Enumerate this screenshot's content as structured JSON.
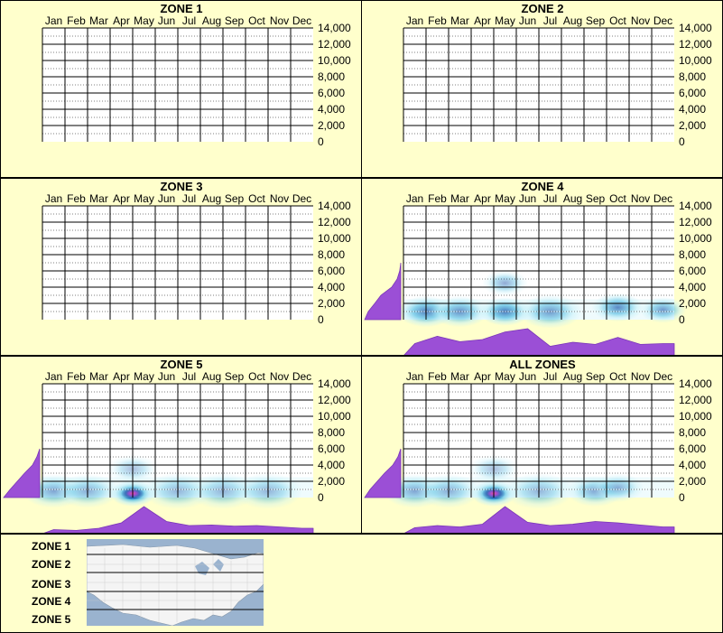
{
  "months": [
    "Jan",
    "Feb",
    "Mar",
    "Apr",
    "May",
    "Jun",
    "Jul",
    "Aug",
    "Sep",
    "Oct",
    "Nov",
    "Dec"
  ],
  "y_ticks": [
    "14,000",
    "12,000",
    "10,000",
    "8,000",
    "6,000",
    "4,000",
    "2,000",
    "0"
  ],
  "colors": {
    "panel_bg": "#ffffcc",
    "density_fill": "#9b4fd6",
    "density_stroke": "#7a36b8",
    "heat_light": "#bfeef8",
    "heat_mid": "#49b8e0",
    "heat_dark": "#0a3fa0",
    "heat_peak": "#ff1493"
  },
  "chart_data": [
    {
      "type": "heatmap",
      "title": "ZONE 1",
      "x": [
        "Jan",
        "Feb",
        "Mar",
        "Apr",
        "May",
        "Jun",
        "Jul",
        "Aug",
        "Sep",
        "Oct",
        "Nov",
        "Dec"
      ],
      "ylim": [
        0,
        14000
      ],
      "elevation_profile": [],
      "monthly_profile": [],
      "hotspots": []
    },
    {
      "type": "heatmap",
      "title": "ZONE 2",
      "x": [
        "Jan",
        "Feb",
        "Mar",
        "Apr",
        "May",
        "Jun",
        "Jul",
        "Aug",
        "Sep",
        "Oct",
        "Nov",
        "Dec"
      ],
      "ylim": [
        0,
        14000
      ],
      "elevation_profile": [],
      "monthly_profile": [],
      "hotspots": []
    },
    {
      "type": "heatmap",
      "title": "ZONE 3",
      "x": [
        "Jan",
        "Feb",
        "Mar",
        "Apr",
        "May",
        "Jun",
        "Jul",
        "Aug",
        "Sep",
        "Oct",
        "Nov",
        "Dec"
      ],
      "ylim": [
        0,
        14000
      ],
      "elevation_profile": [],
      "monthly_profile": [],
      "hotspots": []
    },
    {
      "type": "heatmap",
      "title": "ZONE 4",
      "x": [
        "Jan",
        "Feb",
        "Mar",
        "Apr",
        "May",
        "Jun",
        "Jul",
        "Aug",
        "Sep",
        "Oct",
        "Nov",
        "Dec"
      ],
      "ylim": [
        0,
        14000
      ],
      "elevation_profile": [
        {
          "elev": 0,
          "w": 1.0
        },
        {
          "elev": 1000,
          "w": 0.9
        },
        {
          "elev": 2000,
          "w": 0.72
        },
        {
          "elev": 3000,
          "w": 0.55
        },
        {
          "elev": 4000,
          "w": 0.25
        },
        {
          "elev": 5000,
          "w": 0.1
        },
        {
          "elev": 6000,
          "w": 0.03
        },
        {
          "elev": 7000,
          "w": 0.0
        }
      ],
      "monthly_profile": [
        0.45,
        0.72,
        0.52,
        0.6,
        0.88,
        1.0,
        0.35,
        0.5,
        0.42,
        0.68,
        0.42,
        0.45
      ],
      "hotspots": [
        {
          "month": 1.0,
          "elev": 1000,
          "intensity": 0.85,
          "spread": 0.8
        },
        {
          "month": 2.5,
          "elev": 1000,
          "intensity": 0.75,
          "spread": 0.8
        },
        {
          "month": 4.5,
          "elev": 1000,
          "intensity": 0.9,
          "spread": 0.7
        },
        {
          "month": 4.5,
          "elev": 4500,
          "intensity": 0.45,
          "spread": 0.6
        },
        {
          "month": 6.5,
          "elev": 1000,
          "intensity": 0.7,
          "spread": 0.9
        },
        {
          "month": 9.5,
          "elev": 1500,
          "intensity": 0.8,
          "spread": 0.7
        },
        {
          "month": 11.5,
          "elev": 1200,
          "intensity": 0.7,
          "spread": 0.6
        }
      ]
    },
    {
      "type": "heatmap",
      "title": "ZONE 5",
      "x": [
        "Jan",
        "Feb",
        "Mar",
        "Apr",
        "May",
        "Jun",
        "Jul",
        "Aug",
        "Sep",
        "Oct",
        "Nov",
        "Dec"
      ],
      "ylim": [
        0,
        14000
      ],
      "elevation_profile": [
        {
          "elev": 0,
          "w": 1.0
        },
        {
          "elev": 1000,
          "w": 0.82
        },
        {
          "elev": 2000,
          "w": 0.62
        },
        {
          "elev": 3000,
          "w": 0.42
        },
        {
          "elev": 4000,
          "w": 0.2
        },
        {
          "elev": 5000,
          "w": 0.08
        },
        {
          "elev": 6000,
          "w": 0.0
        }
      ],
      "monthly_profile": [
        0.15,
        0.12,
        0.2,
        0.4,
        1.0,
        0.45,
        0.3,
        0.32,
        0.28,
        0.3,
        0.25,
        0.2
      ],
      "hotspots": [
        {
          "month": 0.5,
          "elev": 800,
          "intensity": 0.6,
          "spread": 0.9
        },
        {
          "month": 2.0,
          "elev": 800,
          "intensity": 0.55,
          "spread": 0.9
        },
        {
          "month": 4.0,
          "elev": 500,
          "intensity": 1.0,
          "spread": 0.6
        },
        {
          "month": 4.0,
          "elev": 3500,
          "intensity": 0.35,
          "spread": 0.7
        },
        {
          "month": 6.0,
          "elev": 800,
          "intensity": 0.5,
          "spread": 1.0
        },
        {
          "month": 8.0,
          "elev": 800,
          "intensity": 0.5,
          "spread": 1.0
        },
        {
          "month": 10.0,
          "elev": 800,
          "intensity": 0.5,
          "spread": 1.0
        }
      ]
    },
    {
      "type": "heatmap",
      "title": "ALL ZONES",
      "x": [
        "Jan",
        "Feb",
        "Mar",
        "Apr",
        "May",
        "Jun",
        "Jul",
        "Aug",
        "Sep",
        "Oct",
        "Nov",
        "Dec"
      ],
      "ylim": [
        0,
        14000
      ],
      "elevation_profile": [
        {
          "elev": 0,
          "w": 1.0
        },
        {
          "elev": 1000,
          "w": 0.85
        },
        {
          "elev": 2000,
          "w": 0.65
        },
        {
          "elev": 3000,
          "w": 0.45
        },
        {
          "elev": 4000,
          "w": 0.22
        },
        {
          "elev": 5000,
          "w": 0.08
        },
        {
          "elev": 6000,
          "w": 0.0
        }
      ],
      "monthly_profile": [
        0.22,
        0.3,
        0.25,
        0.35,
        1.0,
        0.42,
        0.3,
        0.35,
        0.45,
        0.4,
        0.32,
        0.25
      ],
      "hotspots": [
        {
          "month": 0.5,
          "elev": 800,
          "intensity": 0.6,
          "spread": 0.9
        },
        {
          "month": 2.0,
          "elev": 800,
          "intensity": 0.55,
          "spread": 0.9
        },
        {
          "month": 4.0,
          "elev": 500,
          "intensity": 1.0,
          "spread": 0.6
        },
        {
          "month": 4.0,
          "elev": 3500,
          "intensity": 0.35,
          "spread": 0.7
        },
        {
          "month": 6.0,
          "elev": 800,
          "intensity": 0.5,
          "spread": 1.0
        },
        {
          "month": 8.5,
          "elev": 800,
          "intensity": 0.6,
          "spread": 0.8
        },
        {
          "month": 9.5,
          "elev": 1200,
          "intensity": 0.55,
          "spread": 0.7
        }
      ]
    }
  ],
  "legend": {
    "zones": [
      "ZONE 1",
      "ZONE 2",
      "ZONE 3",
      "ZONE 4",
      "ZONE 5"
    ],
    "map_icon": "us-map"
  }
}
